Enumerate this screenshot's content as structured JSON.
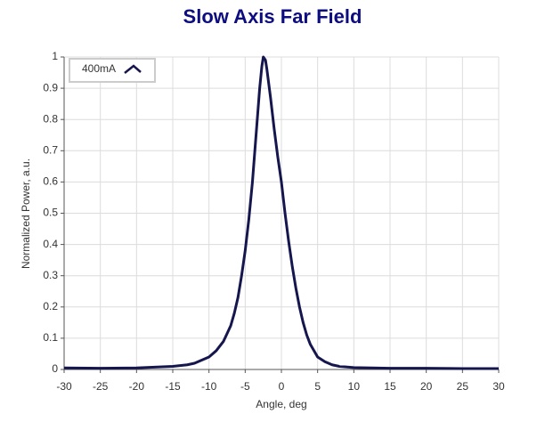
{
  "chart_data": {
    "type": "line",
    "title": "Slow Axis Far Field",
    "xlabel": "Angle, deg",
    "ylabel": "Normalized Power, a.u.",
    "x": [
      -30,
      -25,
      -20,
      -15,
      -13,
      -12,
      -11,
      -10,
      -9,
      -8,
      -7,
      -6.5,
      -6,
      -5.5,
      -5,
      -4.5,
      -4,
      -3.5,
      -3,
      -2.7,
      -2.5,
      -2.2,
      -2,
      -1.5,
      -1,
      -0.5,
      0,
      0.5,
      1,
      1.5,
      2,
      2.5,
      3,
      3.5,
      4,
      5,
      6,
      7,
      8,
      10,
      15,
      20,
      25,
      30
    ],
    "series": [
      {
        "name": "400mA",
        "color": "#16164f",
        "values": [
          0.005,
          0.004,
          0.005,
          0.01,
          0.015,
          0.02,
          0.03,
          0.04,
          0.06,
          0.09,
          0.14,
          0.18,
          0.23,
          0.3,
          0.38,
          0.48,
          0.6,
          0.75,
          0.9,
          0.97,
          1.0,
          0.99,
          0.96,
          0.87,
          0.77,
          0.68,
          0.6,
          0.5,
          0.41,
          0.33,
          0.26,
          0.2,
          0.15,
          0.11,
          0.08,
          0.04,
          0.025,
          0.015,
          0.01,
          0.006,
          0.004,
          0.004,
          0.003,
          0.003
        ]
      }
    ],
    "xlim": [
      -30,
      30
    ],
    "xticks": [
      -30,
      -25,
      -20,
      -15,
      -10,
      -5,
      0,
      5,
      10,
      15,
      20,
      25,
      30
    ],
    "ylim": [
      0,
      1
    ],
    "yticks": [
      0,
      0.1,
      0.2,
      0.3,
      0.4,
      0.5,
      0.6,
      0.7,
      0.8,
      0.9,
      1
    ],
    "grid": true,
    "legend": "upper left"
  }
}
